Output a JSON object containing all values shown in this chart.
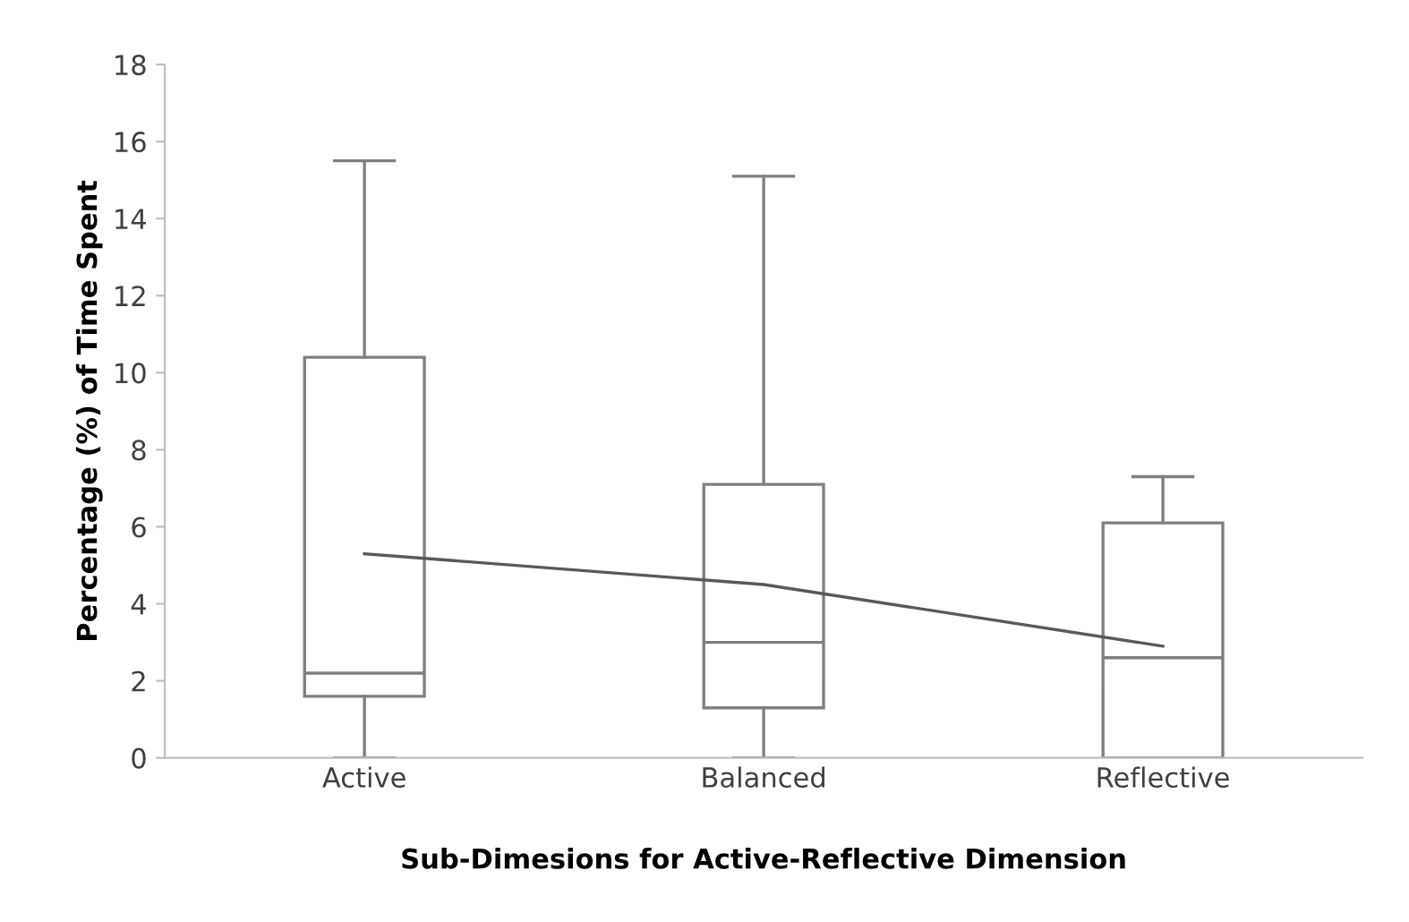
{
  "chart_data": {
    "type": "box",
    "xlabel": "Sub-Dimesions for Active-Reflective Dimension",
    "ylabel": "Percentage (%) of Time Spent",
    "categories": [
      "Active",
      "Balanced",
      "Reflective"
    ],
    "boxes": [
      {
        "low": 0,
        "q1": 1.6,
        "median": 2.2,
        "q3": 10.4,
        "high": 15.5
      },
      {
        "low": 0,
        "q1": 1.3,
        "median": 3.0,
        "q3": 7.1,
        "high": 15.1
      },
      {
        "low": 0,
        "q1": 0,
        "median": 2.6,
        "q3": 6.1,
        "high": 7.3
      }
    ],
    "series": [
      {
        "type": "line",
        "color": "#595959",
        "values": [
          5.3,
          4.5,
          2.9
        ]
      }
    ],
    "color": "#7f7f7f",
    "ylim": [
      0,
      18
    ],
    "yticks": [
      0,
      2,
      4,
      6,
      8,
      10,
      12,
      14,
      16,
      18
    ],
    "grid": false,
    "legend": false
  }
}
